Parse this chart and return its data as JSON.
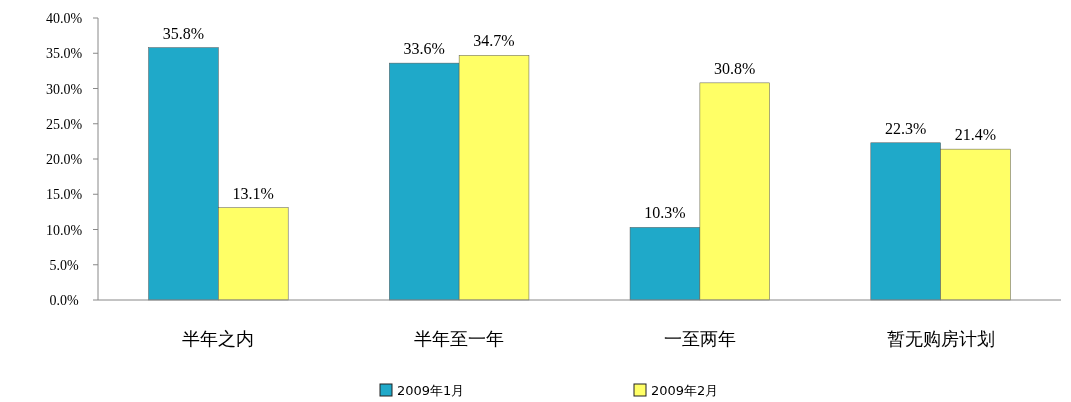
{
  "chart_data": {
    "type": "bar",
    "categories": [
      "半年之内",
      "半年至一年",
      "一至两年",
      "暂无购房计划"
    ],
    "series": [
      {
        "name": "2009年1月",
        "color": "#1fa9c9",
        "values": [
          35.8,
          33.6,
          10.3,
          22.3
        ],
        "value_labels": [
          "35.8%",
          "33.6%",
          "10.3%",
          "22.3%"
        ]
      },
      {
        "name": "2009年2月",
        "color": "#ffff66",
        "values": [
          13.1,
          34.7,
          30.8,
          21.4
        ],
        "value_labels": [
          "13.1%",
          "34.7%",
          "30.8%",
          "21.4%"
        ]
      }
    ],
    "ylim": [
      0,
      40
    ],
    "yticks": [
      {
        "value": 0,
        "label": "0.0%"
      },
      {
        "value": 5,
        "label": "5.0%"
      },
      {
        "value": 10,
        "label": "10.0%"
      },
      {
        "value": 15,
        "label": "15.0%"
      },
      {
        "value": 20,
        "label": "20.0%"
      },
      {
        "value": 25,
        "label": "25.0%"
      },
      {
        "value": 30,
        "label": "30.0%"
      },
      {
        "value": 35,
        "label": "35.0%"
      },
      {
        "value": 40,
        "label": "40.0%"
      }
    ],
    "grid": false,
    "legend": "bottom"
  }
}
